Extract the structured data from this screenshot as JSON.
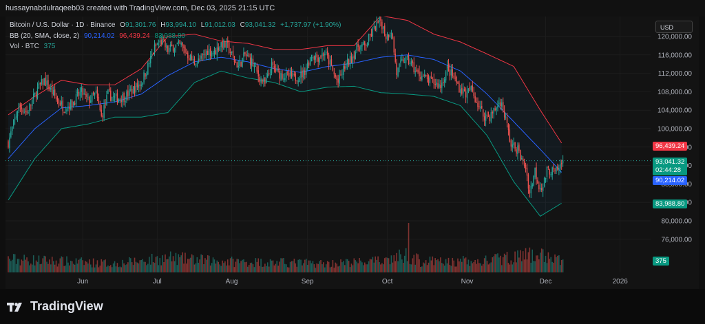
{
  "header": {
    "text": "hussaynabdulraqeeb03 created with TradingView.com, Dec 03, 2025 21:15 UTC"
  },
  "legend": {
    "symbol": "Bitcoin / U.S. Dollar · 1D · Binance",
    "open_label": "O",
    "open": "91,301.76",
    "high_label": "H",
    "high": "93,994.10",
    "low_label": "L",
    "low": "91,012.03",
    "close_label": "C",
    "close": "93,041.32",
    "change": "+1,737.97 (+1.90%)",
    "bb_label": "BB (20, SMA, close, 2)",
    "bb_basis": "90,214.02",
    "bb_upper": "96,439.24",
    "bb_lower": "83,988.80",
    "vol_label": "Vol · BTC",
    "vol": "375"
  },
  "currency": "USD",
  "badges": {
    "upper": "96,439.24",
    "price": "93,041.32",
    "countdown": "02:44:28",
    "basis": "90,214.02",
    "lower": "83,988.80",
    "volume": "375"
  },
  "footer": {
    "logo_text": "TradingView"
  },
  "colors": {
    "up": "#26a69a",
    "down": "#ef5350",
    "basis": "#2962ff",
    "upper": "#f23645",
    "lower": "#089981",
    "bg": "#131313"
  },
  "chart_data": {
    "type": "candlestick",
    "y_ticks": [
      76000,
      80000,
      84000,
      88000,
      92000,
      96000,
      100000,
      104000,
      108000,
      112000,
      116000,
      120000
    ],
    "y_tick_labels": [
      "76,000.00",
      "80,000.00",
      "84,000.00",
      "88,000.00",
      "92,000.00",
      "96,000.00",
      "100,000.00",
      "104,000.00",
      "108,000.00",
      "112,000.00",
      "116,000.00",
      "120,000.00"
    ],
    "x_labels": [
      "Jun",
      "Jul",
      "Aug",
      "Sep",
      "Oct",
      "Nov",
      "Dec",
      "2026"
    ],
    "price_path": [
      [
        0,
        97000
      ],
      [
        8,
        105000
      ],
      [
        14,
        103500
      ],
      [
        22,
        108500
      ],
      [
        27,
        110500
      ],
      [
        35,
        107000
      ],
      [
        42,
        104500
      ],
      [
        48,
        105500
      ],
      [
        55,
        108000
      ],
      [
        60,
        106000
      ],
      [
        66,
        107500
      ],
      [
        70,
        102500
      ],
      [
        75,
        107500
      ],
      [
        80,
        106500
      ],
      [
        88,
        107000
      ],
      [
        95,
        108800
      ],
      [
        100,
        110000
      ],
      [
        105,
        113500
      ],
      [
        110,
        117500
      ],
      [
        115,
        119000
      ],
      [
        120,
        117000
      ],
      [
        125,
        118000
      ],
      [
        130,
        118000
      ],
      [
        135,
        116000
      ],
      [
        140,
        114200
      ],
      [
        145,
        115000
      ],
      [
        150,
        117000
      ],
      [
        155,
        116500
      ],
      [
        160,
        118500
      ],
      [
        165,
        117800
      ],
      [
        170,
        114800
      ],
      [
        173,
        113500
      ],
      [
        178,
        116000
      ],
      [
        183,
        114500
      ],
      [
        188,
        111500
      ],
      [
        193,
        109500
      ],
      [
        198,
        113500
      ],
      [
        203,
        112000
      ],
      [
        208,
        111500
      ],
      [
        215,
        111000
      ],
      [
        222,
        112000
      ],
      [
        228,
        116000
      ],
      [
        233,
        115500
      ],
      [
        238,
        116500
      ],
      [
        242,
        114000
      ],
      [
        245,
        111700
      ],
      [
        248,
        110000
      ],
      [
        253,
        113500
      ],
      [
        258,
        115200
      ],
      [
        263,
        118000
      ],
      [
        268,
        117800
      ],
      [
        272,
        120000
      ],
      [
        276,
        122000
      ],
      [
        280,
        123500
      ],
      [
        284,
        120000
      ],
      [
        288,
        121500
      ],
      [
        292,
        112000
      ],
      [
        297,
        115000
      ],
      [
        302,
        114500
      ],
      [
        307,
        112000
      ],
      [
        311,
        111500
      ],
      [
        315,
        110500
      ],
      [
        320,
        110000
      ],
      [
        325,
        109200
      ],
      [
        330,
        113000
      ],
      [
        335,
        111000
      ],
      [
        340,
        108500
      ],
      [
        344,
        107600
      ],
      [
        348,
        108500
      ],
      [
        352,
        106000
      ],
      [
        357,
        103000
      ],
      [
        362,
        102600
      ],
      [
        366,
        104200
      ],
      [
        370,
        106000
      ],
      [
        374,
        102000
      ],
      [
        378,
        96400
      ],
      [
        383,
        95500
      ],
      [
        386,
        93000
      ],
      [
        389,
        91700
      ],
      [
        392,
        86000
      ],
      [
        396,
        91000
      ],
      [
        399,
        87600
      ],
      [
        402,
        87500
      ],
      [
        405,
        90800
      ],
      [
        408,
        91000
      ],
      [
        411,
        90400
      ],
      [
        414,
        91300
      ],
      [
        417,
        93041
      ]
    ],
    "bb_basis_path": [
      [
        0,
        93500
      ],
      [
        20,
        100000
      ],
      [
        40,
        104500
      ],
      [
        60,
        105000
      ],
      [
        80,
        105800
      ],
      [
        100,
        107500
      ],
      [
        120,
        111500
      ],
      [
        140,
        114500
      ],
      [
        160,
        115500
      ],
      [
        180,
        114500
      ],
      [
        200,
        113000
      ],
      [
        220,
        112200
      ],
      [
        240,
        113500
      ],
      [
        260,
        114200
      ],
      [
        280,
        115500
      ],
      [
        300,
        116000
      ],
      [
        320,
        115000
      ],
      [
        340,
        112500
      ],
      [
        360,
        107500
      ],
      [
        380,
        101500
      ],
      [
        400,
        95500
      ],
      [
        417,
        90214
      ]
    ],
    "bb_upper_path": [
      [
        0,
        103000
      ],
      [
        20,
        107000
      ],
      [
        40,
        110500
      ],
      [
        60,
        109500
      ],
      [
        80,
        109500
      ],
      [
        100,
        113000
      ],
      [
        120,
        120000
      ],
      [
        140,
        120500
      ],
      [
        160,
        119000
      ],
      [
        180,
        118500
      ],
      [
        200,
        117200
      ],
      [
        220,
        117200
      ],
      [
        240,
        118000
      ],
      [
        260,
        118000
      ],
      [
        280,
        124500
      ],
      [
        300,
        123500
      ],
      [
        320,
        120500
      ],
      [
        340,
        118800
      ],
      [
        360,
        116200
      ],
      [
        380,
        113500
      ],
      [
        400,
        104000
      ],
      [
        417,
        96439
      ]
    ],
    "bb_lower_path": [
      [
        0,
        84500
      ],
      [
        20,
        93500
      ],
      [
        40,
        100000
      ],
      [
        60,
        101000
      ],
      [
        80,
        102500
      ],
      [
        100,
        102500
      ],
      [
        120,
        103500
      ],
      [
        140,
        110000
      ],
      [
        160,
        112500
      ],
      [
        180,
        111000
      ],
      [
        200,
        110000
      ],
      [
        220,
        108000
      ],
      [
        240,
        109000
      ],
      [
        260,
        109200
      ],
      [
        280,
        107800
      ],
      [
        300,
        107500
      ],
      [
        320,
        107000
      ],
      [
        340,
        105000
      ],
      [
        360,
        98500
      ],
      [
        380,
        88500
      ],
      [
        400,
        81000
      ],
      [
        417,
        83989
      ]
    ],
    "volume_profile": [
      [
        0,
        1.2
      ],
      [
        40,
        1.0
      ],
      [
        80,
        0.8
      ],
      [
        120,
        1.3
      ],
      [
        160,
        1.0
      ],
      [
        200,
        0.9
      ],
      [
        240,
        0.8
      ],
      [
        280,
        1.0
      ],
      [
        300,
        1.6
      ],
      [
        310,
        1.0
      ],
      [
        350,
        0.9
      ],
      [
        380,
        1.4
      ],
      [
        400,
        1.6
      ],
      [
        417,
        1.0
      ]
    ],
    "volume_spikes": [
      [
        301,
        4.5
      ],
      [
        381,
        1.9
      ],
      [
        342,
        1.5
      ],
      [
        283,
        1.3
      ]
    ]
  }
}
